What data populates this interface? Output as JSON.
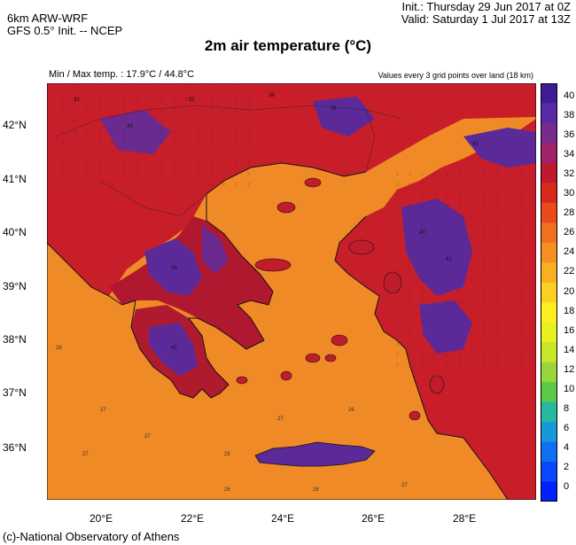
{
  "header": {
    "model_line": "6km ARW-WRF",
    "init_line": "GFS 0.5° Init. -- NCEP",
    "init_time": "Init.:  Thursday 29 Jun 2017 at 0Z",
    "valid_time": "Valid: Saturday 1 Jul 2017 at 13Z"
  },
  "title": "2m air temperature (°C)",
  "minmax": "Min / Max temp. : 17.9°C / 44.8°C",
  "grid_note": "Values every 3 grid points over land (18 km)",
  "credit": "(c)-National Observatory of Athens",
  "map": {
    "lat_labels": [
      "42°N",
      "41°N",
      "40°N",
      "39°N",
      "38°N",
      "37°N",
      "36°N"
    ],
    "lon_labels": [
      "20°E",
      "22°E",
      "24°E",
      "26°E",
      "28°E"
    ],
    "sea_value_samples": [
      "26",
      "27",
      "27",
      "26",
      "26",
      "27",
      "27",
      "27",
      "25",
      "26"
    ],
    "land_value_samples": [
      "33",
      "34",
      "35",
      "36",
      "38",
      "39",
      "40",
      "41",
      "42",
      "43"
    ]
  },
  "colorbar": {
    "labels": [
      "40",
      "38",
      "36",
      "34",
      "32",
      "30",
      "28",
      "26",
      "24",
      "22",
      "20",
      "18",
      "16",
      "14",
      "12",
      "10",
      "8",
      "6",
      "4",
      "2",
      "0"
    ],
    "colors": [
      "#3c1d93",
      "#5a2aa6",
      "#7a2a8c",
      "#a0226a",
      "#c0182c",
      "#d82a1a",
      "#ea4a1c",
      "#f07020",
      "#f59020",
      "#f8b020",
      "#fbd020",
      "#ffee20",
      "#e8f020",
      "#c8e62a",
      "#9ad63a",
      "#5cc84a",
      "#28b8a0",
      "#1898d8",
      "#1070f0",
      "#0848ff",
      "#0020ff"
    ]
  },
  "colors": {
    "sea": "#f0902a",
    "land_hot": "#c21a2a",
    "land_very_hot": "#5a2a9a",
    "coast": "#111111"
  }
}
